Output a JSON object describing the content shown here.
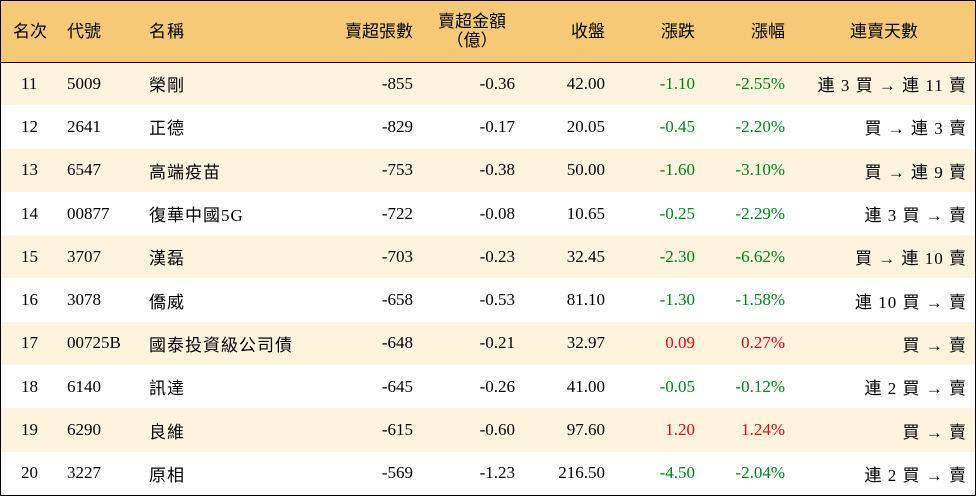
{
  "colors": {
    "header_bg": "#f6c977",
    "row_odd_bg": "#fef3dc",
    "row_even_bg": "#ffffff",
    "up": "#e60012",
    "down": "#00801d"
  },
  "headers": {
    "rank": "名次",
    "code": "代號",
    "name": "名稱",
    "net_sell_lots": "賣超張數",
    "net_sell_amount_line1": "賣超金額",
    "net_sell_amount_line2": "（億）",
    "close": "收盤",
    "change": "漲跌",
    "change_pct": "漲幅",
    "streak": "連賣天數"
  },
  "rows": [
    {
      "rank": "11",
      "code": "5009",
      "name": "榮剛",
      "net_sell_lots": "-855",
      "net_sell_amount": "-0.36",
      "close": "42.00",
      "change": "-1.10",
      "change_pct": "-2.55%",
      "direction": "down",
      "streak": "連 3 買 → 連 11 賣"
    },
    {
      "rank": "12",
      "code": "2641",
      "name": "正德",
      "net_sell_lots": "-829",
      "net_sell_amount": "-0.17",
      "close": "20.05",
      "change": "-0.45",
      "change_pct": "-2.20%",
      "direction": "down",
      "streak": "買 → 連 3 賣"
    },
    {
      "rank": "13",
      "code": "6547",
      "name": "高端疫苗",
      "net_sell_lots": "-753",
      "net_sell_amount": "-0.38",
      "close": "50.00",
      "change": "-1.60",
      "change_pct": "-3.10%",
      "direction": "down",
      "streak": "買 → 連 9 賣"
    },
    {
      "rank": "14",
      "code": "00877",
      "name": "復華中國5G",
      "net_sell_lots": "-722",
      "net_sell_amount": "-0.08",
      "close": "10.65",
      "change": "-0.25",
      "change_pct": "-2.29%",
      "direction": "down",
      "streak": "連 3 買 → 賣"
    },
    {
      "rank": "15",
      "code": "3707",
      "name": "漢磊",
      "net_sell_lots": "-703",
      "net_sell_amount": "-0.23",
      "close": "32.45",
      "change": "-2.30",
      "change_pct": "-6.62%",
      "direction": "down",
      "streak": "買 → 連 10 賣"
    },
    {
      "rank": "16",
      "code": "3078",
      "name": "僑威",
      "net_sell_lots": "-658",
      "net_sell_amount": "-0.53",
      "close": "81.10",
      "change": "-1.30",
      "change_pct": "-1.58%",
      "direction": "down",
      "streak": "連 10 買 → 賣"
    },
    {
      "rank": "17",
      "code": "00725B",
      "name": "國泰投資級公司債",
      "net_sell_lots": "-648",
      "net_sell_amount": "-0.21",
      "close": "32.97",
      "change": "0.09",
      "change_pct": "0.27%",
      "direction": "up",
      "streak": "買 → 賣"
    },
    {
      "rank": "18",
      "code": "6140",
      "name": "訊達",
      "net_sell_lots": "-645",
      "net_sell_amount": "-0.26",
      "close": "41.00",
      "change": "-0.05",
      "change_pct": "-0.12%",
      "direction": "down",
      "streak": "連 2 買 → 賣"
    },
    {
      "rank": "19",
      "code": "6290",
      "name": "良維",
      "net_sell_lots": "-615",
      "net_sell_amount": "-0.60",
      "close": "97.60",
      "change": "1.20",
      "change_pct": "1.24%",
      "direction": "up",
      "streak": "買 → 賣"
    },
    {
      "rank": "20",
      "code": "3227",
      "name": "原相",
      "net_sell_lots": "-569",
      "net_sell_amount": "-1.23",
      "close": "216.50",
      "change": "-4.50",
      "change_pct": "-2.04%",
      "direction": "down",
      "streak": "連 2 買 → 賣"
    }
  ]
}
